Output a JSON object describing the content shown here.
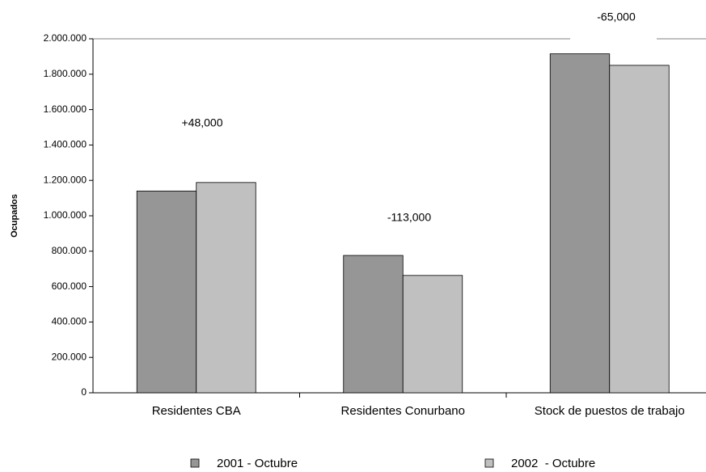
{
  "chart_data": {
    "type": "bar",
    "y_label": "Ocupados",
    "categories": [
      "Residentes CBA",
      "Residentes Conurbano",
      "Stock de puestos de trabajo"
    ],
    "series": [
      {
        "name": "2001 - Octubre",
        "color": "#969696",
        "values": [
          1140000,
          776000,
          1915000
        ]
      },
      {
        "name": "2002  - Octubre",
        "color": "#c0c0c0",
        "values": [
          1188000,
          663000,
          1850000
        ]
      }
    ],
    "annotations": [
      "+48,000",
      "-113,000",
      "-65,000"
    ],
    "ylim": [
      0,
      2000000
    ],
    "yticks": [
      0,
      {
        "value": 200000,
        "label": "200.000"
      },
      {
        "value": 400000,
        "label": "400.000"
      },
      {
        "value": 600000,
        "label": "600.000"
      },
      {
        "value": 800000,
        "label": "800.000"
      },
      {
        "value": 1000000,
        "label": "1.000.000"
      },
      {
        "value": 1200000,
        "label": "1.200.000"
      },
      {
        "value": 1400000,
        "label": "1.400.000"
      },
      {
        "value": 1600000,
        "label": "1.600.000"
      },
      {
        "value": 1800000,
        "label": "1.800.000"
      },
      {
        "value": 2000000,
        "label": "2.000.000"
      }
    ],
    "grid": false
  }
}
